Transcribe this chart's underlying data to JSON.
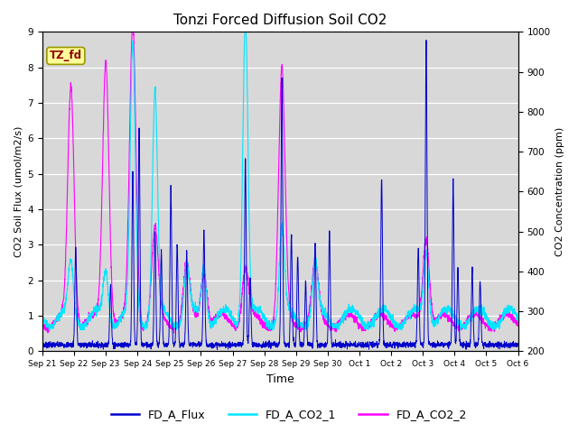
{
  "title": "Tonzi Forced Diffusion Soil CO2",
  "xlabel": "Time",
  "ylabel_left": "CO2 Soil Flux (umol/m2/s)",
  "ylabel_right": "CO2 Concentration (ppm)",
  "ylim_left": [
    0.0,
    9.0
  ],
  "ylim_right": [
    200,
    1000
  ],
  "yticks_left": [
    0.0,
    1.0,
    2.0,
    3.0,
    4.0,
    5.0,
    6.0,
    7.0,
    8.0,
    9.0
  ],
  "yticks_right": [
    200,
    300,
    400,
    500,
    600,
    700,
    800,
    900,
    1000
  ],
  "flux_color": "#0000cd",
  "co2_1_color": "#00e5ff",
  "co2_2_color": "#ff00ff",
  "background_color": "#d8d8d8",
  "tag_text": "TZ_fd",
  "tag_color": "#ffff99",
  "tag_text_color": "#8b0000",
  "legend_labels": [
    "FD_A_Flux",
    "FD_A_CO2_1",
    "FD_A_CO2_2"
  ],
  "tick_labels": [
    "Sep 21",
    "Sep 22",
    "Sep 23",
    "Sep 24",
    "Sep 25",
    "Sep 26",
    "Sep 27",
    "Sep 28",
    "Sep 29",
    "Sep 30",
    "Oct 1",
    "Oct 2",
    "Oct 3",
    "Oct 4",
    "Oct 5",
    "Oct 6"
  ],
  "flux_spikes": {
    "days": [
      1.05,
      2.15,
      2.85,
      3.05,
      3.55,
      3.75,
      4.05,
      4.25,
      4.55,
      5.1,
      6.4,
      6.55,
      7.55,
      7.85,
      8.05,
      8.3,
      8.6,
      9.05,
      10.7,
      11.85,
      12.1,
      12.95,
      13.1,
      13.55,
      13.8
    ],
    "heights": [
      2.8,
      1.7,
      4.9,
      6.1,
      3.2,
      2.6,
      4.5,
      2.8,
      2.6,
      3.2,
      5.2,
      1.9,
      7.5,
      3.1,
      2.5,
      1.8,
      2.9,
      3.2,
      4.7,
      2.75,
      8.65,
      4.6,
      2.2,
      2.1,
      1.8
    ]
  },
  "co2_spike_days": [
    0.9,
    2.0,
    2.85,
    3.55,
    4.55,
    5.1,
    6.4,
    7.55,
    8.6,
    12.1
  ],
  "co2_1_heights": [
    1.5,
    1.3,
    7.6,
    6.3,
    1.5,
    1.5,
    8.5,
    2.5,
    1.5,
    2.0
  ],
  "co2_2_heights": [
    6.6,
    7.4,
    8.3,
    2.5,
    1.5,
    1.5,
    1.5,
    7.0,
    1.5,
    2.5
  ],
  "n_points": 3000,
  "seed": 7
}
